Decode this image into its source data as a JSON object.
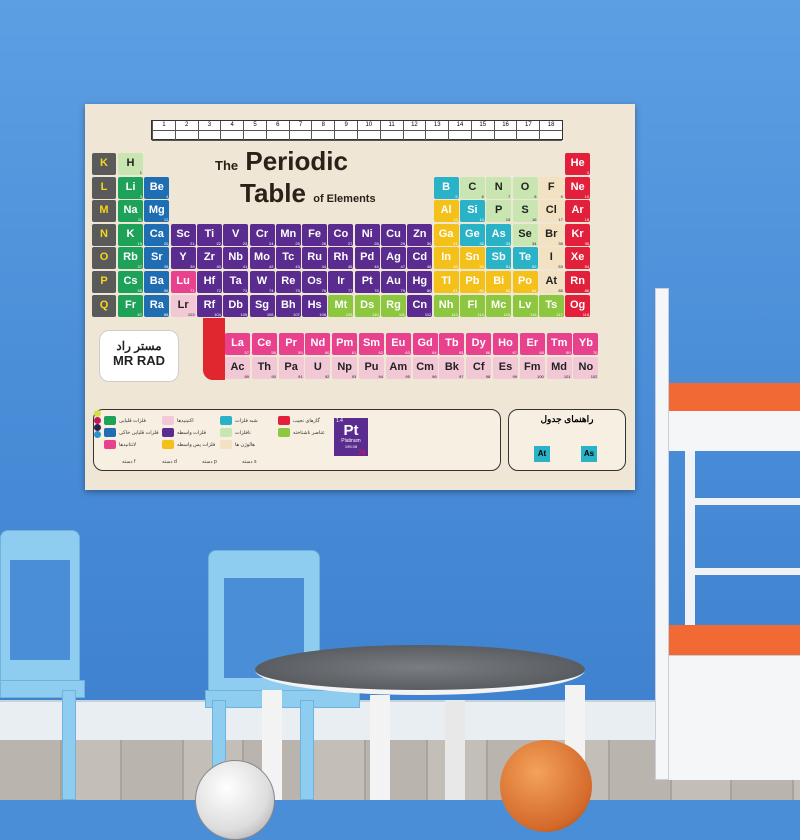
{
  "poster": {
    "title_the": "The",
    "title_periodic": "Periodic",
    "title_table": "Table",
    "title_of": "of Elements",
    "groups": [
      "1",
      "2",
      "3",
      "4",
      "5",
      "6",
      "7",
      "8",
      "9",
      "10",
      "11",
      "12",
      "13",
      "14",
      "15",
      "16",
      "17",
      "18"
    ],
    "periods": [
      "K",
      "L",
      "M",
      "N",
      "O",
      "P",
      "Q"
    ],
    "colors": {
      "alkali": "#1ea25a",
      "alkaline": "#1f6db3",
      "transition": "#5b2c90",
      "lanthanide": "#e8428e",
      "actinide": "#f3c8d6",
      "post": "#f4c01a",
      "metalloid": "#2ab3c7",
      "nonmetal": "#c9e6b2",
      "halogen": "#f3e2c2",
      "noble": "#e2203c",
      "unknown": "#8dc63f"
    },
    "elements": [
      [
        "H",
        1,
        1,
        1,
        "nonmetal"
      ],
      [
        "He",
        2,
        1,
        18,
        "noble"
      ],
      [
        "Li",
        3,
        2,
        1,
        "alkali"
      ],
      [
        "Be",
        4,
        2,
        2,
        "alkaline"
      ],
      [
        "B",
        5,
        2,
        13,
        "metalloid"
      ],
      [
        "C",
        6,
        2,
        14,
        "nonmetal"
      ],
      [
        "N",
        7,
        2,
        15,
        "nonmetal"
      ],
      [
        "O",
        8,
        2,
        16,
        "nonmetal"
      ],
      [
        "F",
        9,
        2,
        17,
        "halogen"
      ],
      [
        "Ne",
        10,
        2,
        18,
        "noble"
      ],
      [
        "Na",
        11,
        3,
        1,
        "alkali"
      ],
      [
        "Mg",
        12,
        3,
        2,
        "alkaline"
      ],
      [
        "Al",
        13,
        3,
        13,
        "post"
      ],
      [
        "Si",
        14,
        3,
        14,
        "metalloid"
      ],
      [
        "P",
        15,
        3,
        15,
        "nonmetal"
      ],
      [
        "S",
        16,
        3,
        16,
        "nonmetal"
      ],
      [
        "Cl",
        17,
        3,
        17,
        "halogen"
      ],
      [
        "Ar",
        18,
        3,
        18,
        "noble"
      ],
      [
        "K",
        19,
        4,
        1,
        "alkali"
      ],
      [
        "Ca",
        20,
        4,
        2,
        "alkaline"
      ],
      [
        "Sc",
        21,
        4,
        3,
        "transition"
      ],
      [
        "Ti",
        22,
        4,
        4,
        "transition"
      ],
      [
        "V",
        23,
        4,
        5,
        "transition"
      ],
      [
        "Cr",
        24,
        4,
        6,
        "transition"
      ],
      [
        "Mn",
        25,
        4,
        7,
        "transition"
      ],
      [
        "Fe",
        26,
        4,
        8,
        "transition"
      ],
      [
        "Co",
        27,
        4,
        9,
        "transition"
      ],
      [
        "Ni",
        28,
        4,
        10,
        "transition"
      ],
      [
        "Cu",
        29,
        4,
        11,
        "transition"
      ],
      [
        "Zn",
        30,
        4,
        12,
        "transition"
      ],
      [
        "Ga",
        31,
        4,
        13,
        "post"
      ],
      [
        "Ge",
        32,
        4,
        14,
        "metalloid"
      ],
      [
        "As",
        33,
        4,
        15,
        "metalloid"
      ],
      [
        "Se",
        34,
        4,
        16,
        "nonmetal"
      ],
      [
        "Br",
        35,
        4,
        17,
        "halogen"
      ],
      [
        "Kr",
        36,
        4,
        18,
        "noble"
      ],
      [
        "Rb",
        37,
        5,
        1,
        "alkali"
      ],
      [
        "Sr",
        38,
        5,
        2,
        "alkaline"
      ],
      [
        "Y",
        39,
        5,
        3,
        "transition"
      ],
      [
        "Zr",
        40,
        5,
        4,
        "transition"
      ],
      [
        "Nb",
        41,
        5,
        5,
        "transition"
      ],
      [
        "Mo",
        42,
        5,
        6,
        "transition"
      ],
      [
        "Tc",
        43,
        5,
        7,
        "transition"
      ],
      [
        "Ru",
        44,
        5,
        8,
        "transition"
      ],
      [
        "Rh",
        45,
        5,
        9,
        "transition"
      ],
      [
        "Pd",
        46,
        5,
        10,
        "transition"
      ],
      [
        "Ag",
        47,
        5,
        11,
        "transition"
      ],
      [
        "Cd",
        48,
        5,
        12,
        "transition"
      ],
      [
        "In",
        49,
        5,
        13,
        "post"
      ],
      [
        "Sn",
        50,
        5,
        14,
        "post"
      ],
      [
        "Sb",
        51,
        5,
        15,
        "metalloid"
      ],
      [
        "Te",
        52,
        5,
        16,
        "metalloid"
      ],
      [
        "I",
        53,
        5,
        17,
        "halogen"
      ],
      [
        "Xe",
        54,
        5,
        18,
        "noble"
      ],
      [
        "Cs",
        55,
        6,
        1,
        "alkali"
      ],
      [
        "Ba",
        56,
        6,
        2,
        "alkaline"
      ],
      [
        "Lu",
        71,
        6,
        3,
        "lanthanide"
      ],
      [
        "Hf",
        72,
        6,
        4,
        "transition"
      ],
      [
        "Ta",
        73,
        6,
        5,
        "transition"
      ],
      [
        "W",
        74,
        6,
        6,
        "transition"
      ],
      [
        "Re",
        75,
        6,
        7,
        "transition"
      ],
      [
        "Os",
        76,
        6,
        8,
        "transition"
      ],
      [
        "Ir",
        77,
        6,
        9,
        "transition"
      ],
      [
        "Pt",
        78,
        6,
        10,
        "transition"
      ],
      [
        "Au",
        79,
        6,
        11,
        "transition"
      ],
      [
        "Hg",
        80,
        6,
        12,
        "transition"
      ],
      [
        "Tl",
        81,
        6,
        13,
        "post"
      ],
      [
        "Pb",
        82,
        6,
        14,
        "post"
      ],
      [
        "Bi",
        83,
        6,
        15,
        "post"
      ],
      [
        "Po",
        84,
        6,
        16,
        "post"
      ],
      [
        "At",
        85,
        6,
        17,
        "halogen"
      ],
      [
        "Rn",
        86,
        6,
        18,
        "noble"
      ],
      [
        "Fr",
        87,
        7,
        1,
        "alkali"
      ],
      [
        "Ra",
        88,
        7,
        2,
        "alkaline"
      ],
      [
        "Lr",
        103,
        7,
        3,
        "actinide"
      ],
      [
        "Rf",
        104,
        7,
        4,
        "transition"
      ],
      [
        "Db",
        105,
        7,
        5,
        "transition"
      ],
      [
        "Sg",
        106,
        7,
        6,
        "transition"
      ],
      [
        "Bh",
        107,
        7,
        7,
        "transition"
      ],
      [
        "Hs",
        108,
        7,
        8,
        "transition"
      ],
      [
        "Mt",
        109,
        7,
        9,
        "unknown"
      ],
      [
        "Ds",
        110,
        7,
        10,
        "unknown"
      ],
      [
        "Rg",
        111,
        7,
        11,
        "unknown"
      ],
      [
        "Cn",
        112,
        7,
        12,
        "transition"
      ],
      [
        "Nh",
        113,
        7,
        13,
        "unknown"
      ],
      [
        "Fl",
        114,
        7,
        14,
        "unknown"
      ],
      [
        "Mc",
        115,
        7,
        15,
        "unknown"
      ],
      [
        "Lv",
        116,
        7,
        16,
        "unknown"
      ],
      [
        "Ts",
        117,
        7,
        17,
        "unknown"
      ],
      [
        "Og",
        118,
        7,
        18,
        "noble"
      ]
    ],
    "lanthanides": [
      [
        "La",
        57
      ],
      [
        "Ce",
        58
      ],
      [
        "Pr",
        59
      ],
      [
        "Nd",
        60
      ],
      [
        "Pm",
        61
      ],
      [
        "Sm",
        62
      ],
      [
        "Eu",
        63
      ],
      [
        "Gd",
        64
      ],
      [
        "Tb",
        65
      ],
      [
        "Dy",
        66
      ],
      [
        "Ho",
        67
      ],
      [
        "Er",
        68
      ],
      [
        "Tm",
        69
      ],
      [
        "Yb",
        70
      ]
    ],
    "actinides": [
      [
        "Ac",
        89
      ],
      [
        "Th",
        90
      ],
      [
        "Pa",
        91
      ],
      [
        "U",
        92
      ],
      [
        "Np",
        93
      ],
      [
        "Pu",
        94
      ],
      [
        "Am",
        95
      ],
      [
        "Cm",
        96
      ],
      [
        "Bk",
        97
      ],
      [
        "Cf",
        98
      ],
      [
        "Es",
        99
      ],
      [
        "Fm",
        100
      ],
      [
        "Md",
        101
      ],
      [
        "No",
        102
      ]
    ],
    "logo": {
      "fa": "مستر راد",
      "en": "MR RAD"
    },
    "legend": {
      "items": [
        [
          "فلزات قلیایی",
          "alkali"
        ],
        [
          "فلزات قلیایی خاکی",
          "alkaline"
        ],
        [
          "لانتانیدها",
          "lanthanide"
        ],
        [
          "اکتینیدها",
          "actinide"
        ],
        [
          "فلزات واسطه",
          "transition"
        ],
        [
          "فلزات پس واسطه",
          "post"
        ],
        [
          "شبه فلزات",
          "metalloid"
        ],
        [
          "نافلزات",
          "nonmetal"
        ],
        [
          "هالوژن ها",
          "halogen"
        ],
        [
          "گازهای نجیب",
          "noble"
        ],
        [
          "عناصر ناشناخته",
          "unknown"
        ]
      ],
      "blocks": [
        "دسته f",
        "دسته d",
        "دسته p",
        "دسته s"
      ],
      "sample": {
        "symbol": "Pt",
        "name": "Platinum",
        "number": "78",
        "mass": "195.08",
        "en": "1.4"
      }
    },
    "guide": {
      "title": "راهنمای جدول",
      "ex1": "At",
      "ex2": "As"
    }
  }
}
